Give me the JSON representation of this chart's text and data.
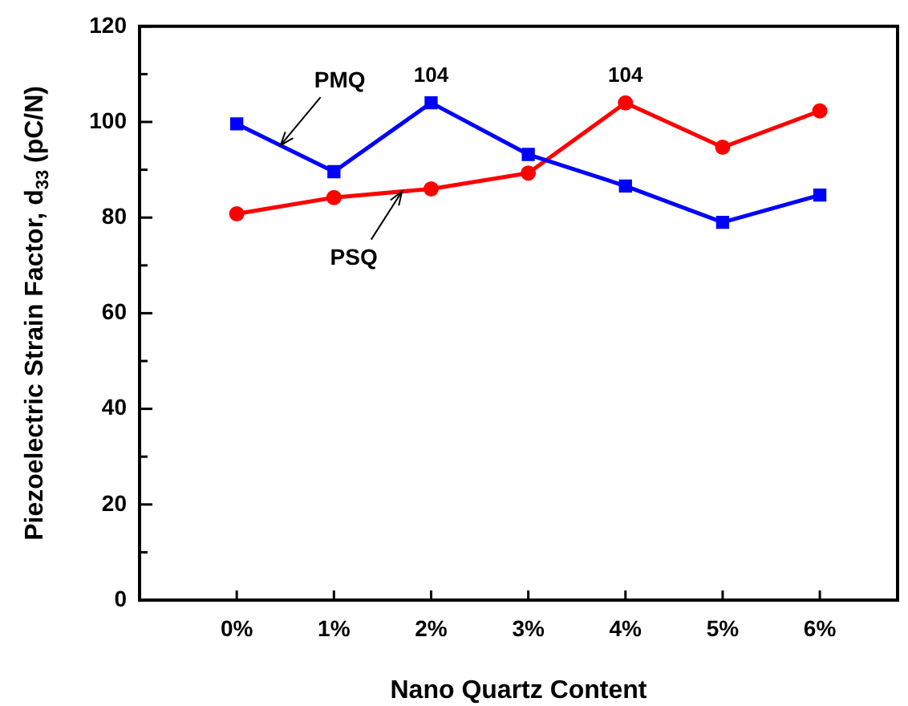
{
  "chart_data": {
    "type": "line",
    "xlabel": "Nano Quartz Content",
    "ylabel": "Piezoelectric Strain Factor, d$_{33}$ (pC/N)",
    "x": [
      0,
      1,
      2,
      3,
      4,
      5,
      6
    ],
    "xlim": [
      -1,
      6.8
    ],
    "xticks": [
      {
        "value": 0,
        "label": "0%"
      },
      {
        "value": 1,
        "label": "1%"
      },
      {
        "value": 2,
        "label": "2%"
      },
      {
        "value": 3,
        "label": "3%"
      },
      {
        "value": 4,
        "label": "4%"
      },
      {
        "value": 5,
        "label": "5%"
      },
      {
        "value": 6,
        "label": "6%"
      }
    ],
    "ylim": [
      0,
      120
    ],
    "yticks": [
      0,
      {
        "value": 10,
        "label": null
      },
      20,
      {
        "value": 30,
        "label": null
      },
      40,
      {
        "value": 50,
        "label": null
      },
      60,
      {
        "value": 70,
        "label": null
      },
      80,
      {
        "value": 90,
        "label": null
      },
      100,
      {
        "value": 110,
        "label": null
      },
      120
    ],
    "grid": false,
    "legend": false,
    "series": [
      {
        "name": "PMQ",
        "color": "#0000ff",
        "marker": "square",
        "values": [
          99.6,
          89.6,
          104,
          93.2,
          86.6,
          79.0,
          84.7
        ]
      },
      {
        "name": "PSQ",
        "color": "#ff0000",
        "marker": "circle",
        "values": [
          80.8,
          84.2,
          86.0,
          89.3,
          104,
          94.7,
          102.3
        ]
      }
    ],
    "annotations": [
      {
        "text": "104",
        "x": 2,
        "y": 104
      },
      {
        "text": "104",
        "x": 4,
        "y": 104
      }
    ]
  }
}
